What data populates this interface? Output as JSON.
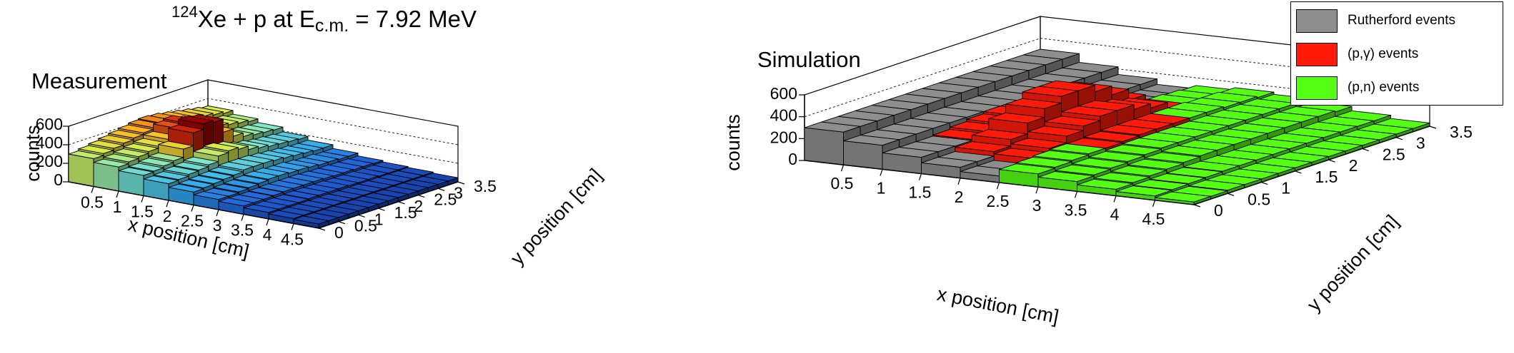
{
  "title": {
    "nucleus_mass": "124",
    "rest": "Xe + p at E",
    "sub": "c.m.",
    "value": " = 7.92 MeV"
  },
  "legend": [
    {
      "label": "Rutherford events",
      "color": "#8e8e8e"
    },
    {
      "label": "(p,γ) events",
      "color": "#ff1a0a"
    },
    {
      "label": "(p,n) events",
      "color": "#55ff14"
    }
  ],
  "chart_data": [
    {
      "type": "lego",
      "panel": "Measurement",
      "xlabel": "x position [cm]",
      "ylabel": "y position [cm]",
      "zlabel": "counts",
      "xlim": [
        0,
        5
      ],
      "ylim": [
        0,
        3.5
      ],
      "zlim": [
        0,
        600
      ],
      "x_ticks": [
        "0.5",
        "1",
        "1.5",
        "2",
        "2.5",
        "3",
        "3.5",
        "4",
        "4.5"
      ],
      "y_ticks": [
        "0",
        "0.5",
        "1",
        "1.5",
        "2",
        "2.5",
        "3",
        "3.5"
      ],
      "z_ticks": [
        "0",
        "200",
        "400",
        "600"
      ],
      "color_scale": [
        "#10227a",
        "#1f5fd8",
        "#38b8ee",
        "#7fe6c8",
        "#d8ec48",
        "#ffb21a",
        "#e0300e",
        "#9a0000"
      ],
      "grid_x_centers": [
        0.25,
        0.75,
        1.25,
        1.75,
        2.25,
        2.75,
        3.25,
        3.75,
        4.25,
        4.75
      ],
      "grid_y_centers": [
        0.125,
        0.375,
        0.625,
        0.875,
        1.125,
        1.375,
        1.625,
        1.875,
        2.125,
        2.375,
        2.625,
        2.875,
        3.125,
        3.375
      ],
      "values": [
        [
          300,
          260,
          220,
          180,
          140,
          110,
          90,
          70,
          55,
          45
        ],
        [
          320,
          280,
          230,
          190,
          150,
          110,
          90,
          70,
          55,
          45
        ],
        [
          340,
          300,
          250,
          210,
          160,
          120,
          90,
          70,
          55,
          45
        ],
        [
          360,
          320,
          270,
          220,
          170,
          130,
          95,
          70,
          55,
          45
        ],
        [
          380,
          340,
          360,
          240,
          180,
          140,
          100,
          75,
          55,
          45
        ],
        [
          400,
          380,
          500,
          300,
          200,
          150,
          100,
          75,
          55,
          45
        ],
        [
          420,
          460,
          560,
          320,
          200,
          150,
          100,
          75,
          55,
          45
        ],
        [
          430,
          480,
          540,
          300,
          200,
          140,
          100,
          75,
          55,
          45
        ],
        [
          420,
          440,
          400,
          260,
          190,
          140,
          95,
          70,
          55,
          45
        ],
        [
          400,
          380,
          320,
          240,
          180,
          130,
          90,
          70,
          55,
          45
        ],
        [
          380,
          340,
          280,
          220,
          170,
          120,
          90,
          70,
          55,
          45
        ],
        [
          360,
          320,
          260,
          210,
          160,
          120,
          85,
          65,
          55,
          45
        ],
        [
          340,
          300,
          250,
          200,
          150,
          110,
          85,
          65,
          55,
          45
        ],
        [
          320,
          280,
          240,
          190,
          150,
          110,
          80,
          65,
          55,
          45
        ]
      ]
    },
    {
      "type": "lego",
      "panel": "Simulation",
      "xlabel": "x position [cm]",
      "ylabel": "y position [cm]",
      "zlabel": "counts",
      "xlim": [
        0,
        5
      ],
      "ylim": [
        0,
        3.5
      ],
      "zlim": [
        0,
        600
      ],
      "x_ticks": [
        "0.5",
        "1",
        "1.5",
        "2",
        "2.5",
        "3",
        "3.5",
        "4",
        "4.5"
      ],
      "y_ticks": [
        "0",
        "0.5",
        "1",
        "1.5",
        "2",
        "2.5",
        "3",
        "3.5"
      ],
      "z_ticks": [
        "0",
        "200",
        "400",
        "600"
      ],
      "grid_x_centers": [
        0.25,
        0.75,
        1.25,
        1.75,
        2.25,
        2.75,
        3.25,
        3.75,
        4.25,
        4.75
      ],
      "grid_y_centers": [
        0.125,
        0.375,
        0.625,
        0.875,
        1.125,
        1.375,
        1.625,
        1.875,
        2.125,
        2.375,
        2.625,
        2.875,
        3.125,
        3.375
      ],
      "series_by_cell": [
        [
          "R",
          "R",
          "R",
          "R",
          "R",
          "N",
          "N",
          "N",
          "N",
          "N"
        ],
        [
          "R",
          "R",
          "R",
          "R",
          "R",
          "N",
          "N",
          "N",
          "N",
          "N"
        ],
        [
          "R",
          "R",
          "R",
          "G",
          "G",
          "N",
          "N",
          "N",
          "N",
          "N"
        ],
        [
          "R",
          "R",
          "G",
          "G",
          "G",
          "N",
          "N",
          "N",
          "N",
          "N"
        ],
        [
          "R",
          "R",
          "G",
          "G",
          "G",
          "G",
          "N",
          "N",
          "N",
          "N"
        ],
        [
          "R",
          "R",
          "G",
          "G",
          "G",
          "G",
          "N",
          "N",
          "N",
          "N"
        ],
        [
          "R",
          "R",
          "G",
          "G",
          "G",
          "G",
          "N",
          "N",
          "N",
          "N"
        ],
        [
          "R",
          "R",
          "G",
          "G",
          "G",
          "G",
          "N",
          "N",
          "N",
          "N"
        ],
        [
          "R",
          "R",
          "G",
          "G",
          "G",
          "G",
          "N",
          "N",
          "N",
          "N"
        ],
        [
          "R",
          "R",
          "R",
          "G",
          "G",
          "N",
          "N",
          "N",
          "N",
          "N"
        ],
        [
          "R",
          "R",
          "R",
          "G",
          "G",
          "N",
          "N",
          "N",
          "N",
          "N"
        ],
        [
          "R",
          "R",
          "R",
          "R",
          "N",
          "N",
          "N",
          "N",
          "N",
          "N"
        ],
        [
          "R",
          "R",
          "R",
          "R",
          "N",
          "N",
          "N",
          "N",
          "N",
          "N"
        ],
        [
          "R",
          "R",
          "R",
          "R",
          "N",
          "N",
          "N",
          "N",
          "N",
          "N"
        ]
      ],
      "values": [
        [
          300,
          220,
          150,
          100,
          60,
          120,
          90,
          60,
          40,
          25
        ],
        [
          300,
          220,
          150,
          100,
          60,
          130,
          100,
          70,
          45,
          25
        ],
        [
          300,
          220,
          150,
          140,
          120,
          140,
          110,
          80,
          50,
          30
        ],
        [
          300,
          220,
          160,
          200,
          160,
          150,
          120,
          90,
          55,
          30
        ],
        [
          300,
          220,
          180,
          300,
          220,
          150,
          130,
          100,
          60,
          30
        ],
        [
          300,
          220,
          200,
          380,
          260,
          160,
          140,
          110,
          60,
          30
        ],
        [
          300,
          220,
          220,
          440,
          300,
          170,
          140,
          110,
          60,
          30
        ],
        [
          300,
          220,
          220,
          440,
          300,
          170,
          140,
          110,
          60,
          30
        ],
        [
          300,
          220,
          200,
          380,
          260,
          170,
          140,
          110,
          60,
          30
        ],
        [
          300,
          220,
          150,
          300,
          220,
          170,
          140,
          110,
          60,
          30
        ],
        [
          300,
          220,
          150,
          200,
          160,
          170,
          140,
          110,
          60,
          30
        ],
        [
          300,
          220,
          150,
          120,
          150,
          160,
          140,
          110,
          60,
          30
        ],
        [
          300,
          220,
          150,
          100,
          140,
          160,
          140,
          110,
          60,
          30
        ],
        [
          300,
          220,
          150,
          100,
          130,
          150,
          130,
          100,
          60,
          30
        ]
      ]
    }
  ]
}
